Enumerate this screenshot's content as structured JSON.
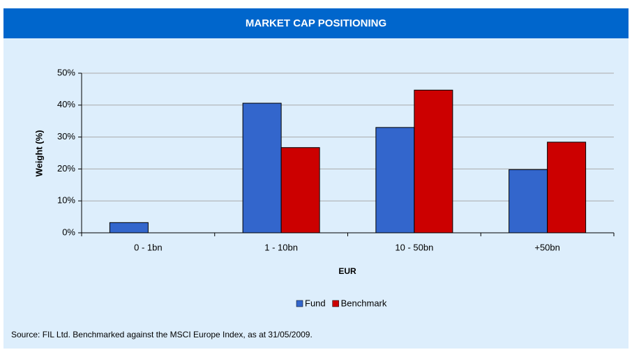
{
  "chart_data": {
    "type": "bar",
    "title": "MARKET CAP POSITIONING",
    "categories": [
      "0 - 1bn",
      "1 - 10bn",
      "10 - 50bn",
      "+50bn"
    ],
    "series": [
      {
        "name": "Fund",
        "color": "#3366cc",
        "values": [
          3.2,
          40.6,
          33.0,
          19.8
        ]
      },
      {
        "name": "Benchmark",
        "color": "#cc0000",
        "values": [
          0,
          26.7,
          44.7,
          28.4
        ]
      }
    ],
    "ylim": [
      0,
      50
    ],
    "yticks": [
      {
        "value": 0,
        "label": "0%"
      },
      {
        "value": 10,
        "label": "10%"
      },
      {
        "value": 20,
        "label": "20%"
      },
      {
        "value": 30,
        "label": "30%"
      },
      {
        "value": 40,
        "label": "40%"
      },
      {
        "value": 50,
        "label": "50%"
      }
    ],
    "y_label": "Weight (%)",
    "x_label": "EUR",
    "grid": true,
    "legend": "bottom",
    "source": "Source: FIL Ltd.  Benchmarked against the MSCI Europe Index, as at 31/05/2009."
  }
}
